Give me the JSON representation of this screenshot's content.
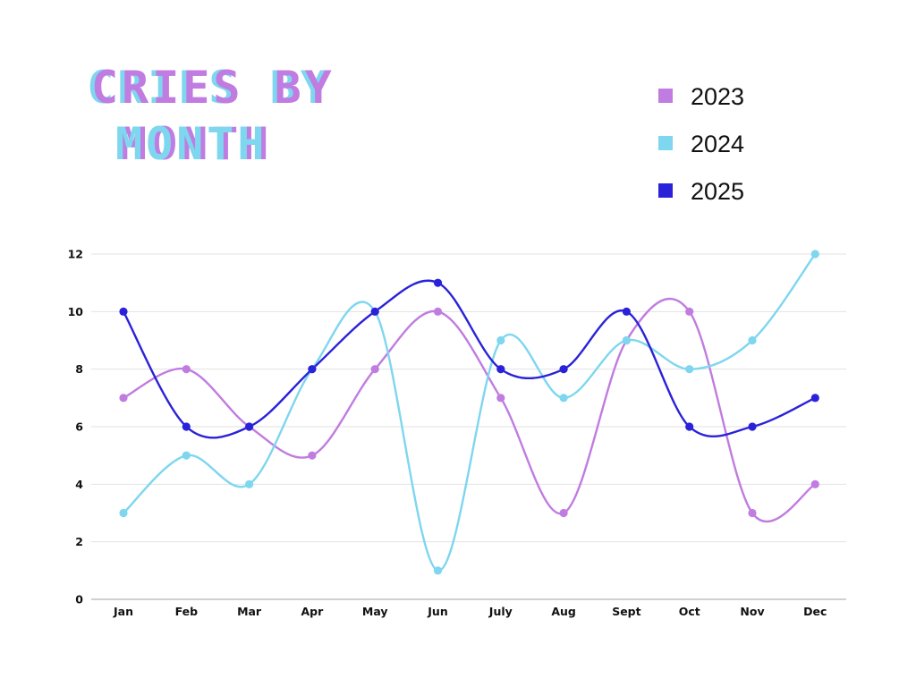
{
  "chart_data": {
    "type": "line",
    "title_lines": [
      "CRIES BY",
      "MONTH"
    ],
    "categories": [
      "Jan",
      "Feb",
      "Mar",
      "Apr",
      "May",
      "Jun",
      "July",
      "Aug",
      "Sept",
      "Oct",
      "Nov",
      "Dec"
    ],
    "series": [
      {
        "name": "2023",
        "color": "#c07ce0",
        "values": [
          7,
          8,
          6,
          5,
          8,
          10,
          7,
          3,
          9,
          10,
          3,
          4
        ]
      },
      {
        "name": "2024",
        "color": "#7ed6ef",
        "values": [
          3,
          5,
          4,
          8,
          10,
          1,
          9,
          7,
          9,
          8,
          9,
          12
        ]
      },
      {
        "name": "2025",
        "color": "#2a22d8",
        "values": [
          10,
          6,
          6,
          8,
          10,
          11,
          8,
          8,
          10,
          6,
          6,
          7
        ]
      }
    ],
    "ylim": [
      0,
      12
    ],
    "yticks": [
      "0",
      "2",
      "4",
      "6",
      "8",
      "10",
      "12"
    ],
    "xlabel": "",
    "ylabel": "",
    "grid": true,
    "legend_position": "top-right",
    "smooth": true
  }
}
